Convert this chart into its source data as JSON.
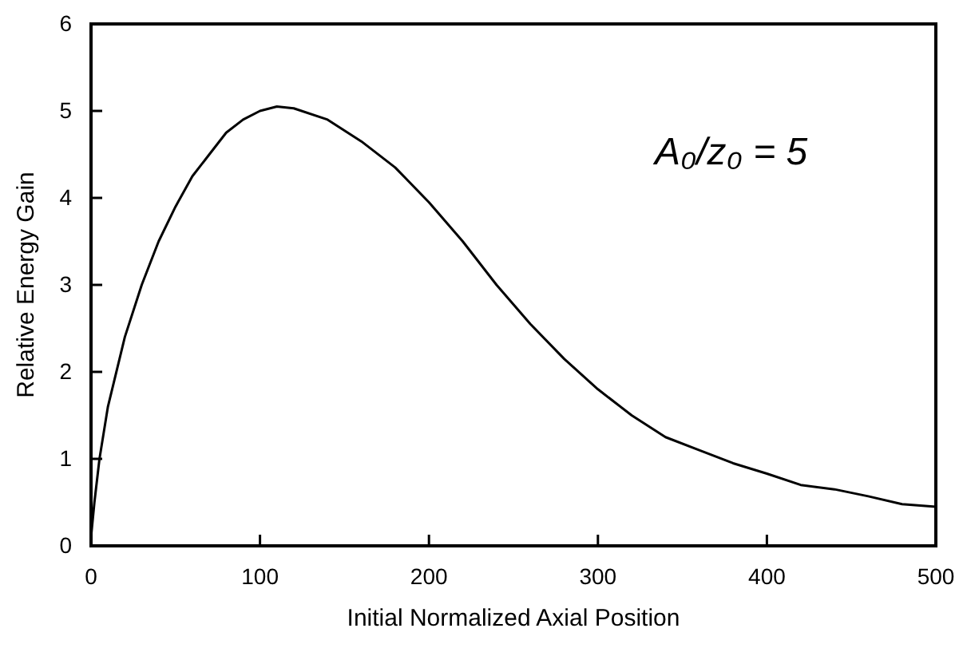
{
  "chart_data": {
    "type": "line",
    "xlabel": "Initial Normalized Axial Position",
    "ylabel": "Relative Energy Gain",
    "x": [
      0,
      2,
      5,
      10,
      20,
      30,
      40,
      50,
      60,
      70,
      80,
      90,
      100,
      110,
      120,
      140,
      160,
      180,
      200,
      220,
      240,
      260,
      280,
      300,
      320,
      340,
      360,
      380,
      400,
      420,
      440,
      460,
      480,
      500
    ],
    "series": [
      {
        "color": "#000000",
        "values": [
          0.1,
          0.5,
          1.0,
          1.6,
          2.4,
          3.0,
          3.5,
          3.9,
          4.25,
          4.5,
          4.75,
          4.9,
          5.0,
          5.05,
          5.03,
          4.9,
          4.65,
          4.35,
          3.95,
          3.5,
          3.0,
          2.55,
          2.15,
          1.8,
          1.5,
          1.25,
          1.1,
          0.95,
          0.83,
          0.7,
          0.65,
          0.57,
          0.48,
          0.45
        ]
      }
    ],
    "xlim": [
      0,
      500
    ],
    "xticks": [
      0,
      100,
      200,
      300,
      400,
      500
    ],
    "ylim": [
      0,
      6
    ],
    "yticks": [
      0,
      1,
      2,
      3,
      4,
      5,
      6
    ],
    "annotations": [
      "A₀/z₀ = 5"
    ],
    "grid": false,
    "marker": "none",
    "line_style": "solid"
  }
}
